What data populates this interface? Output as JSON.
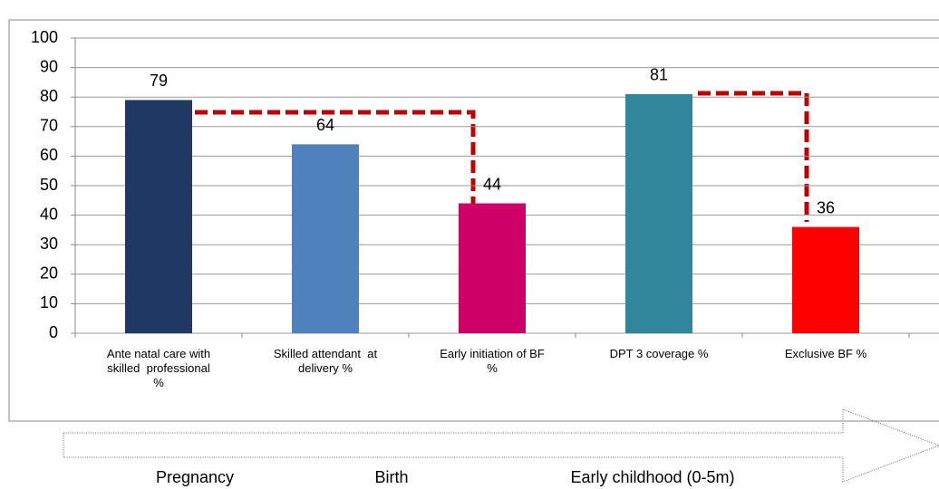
{
  "chart_data": {
    "type": "bar",
    "categories": [
      "Ante natal care with\nskilled  professional\n%",
      "Skilled attendant  at\ndelivery %",
      "Early initiation of BF\n%",
      "DPT 3 coverage %",
      "Exclusive BF %"
    ],
    "values": [
      79,
      64,
      44,
      81,
      36
    ],
    "colors": [
      "#1f3864",
      "#4f81bd",
      "#cc0066",
      "#31869b",
      "#ff0000"
    ],
    "ylim": [
      0,
      100
    ],
    "yticks": [
      0,
      10,
      20,
      30,
      40,
      50,
      60,
      70,
      80,
      90,
      100
    ],
    "grid": true,
    "phases": [
      "Pregnancy",
      "Birth",
      "Early childhood (0-5m)"
    ]
  }
}
